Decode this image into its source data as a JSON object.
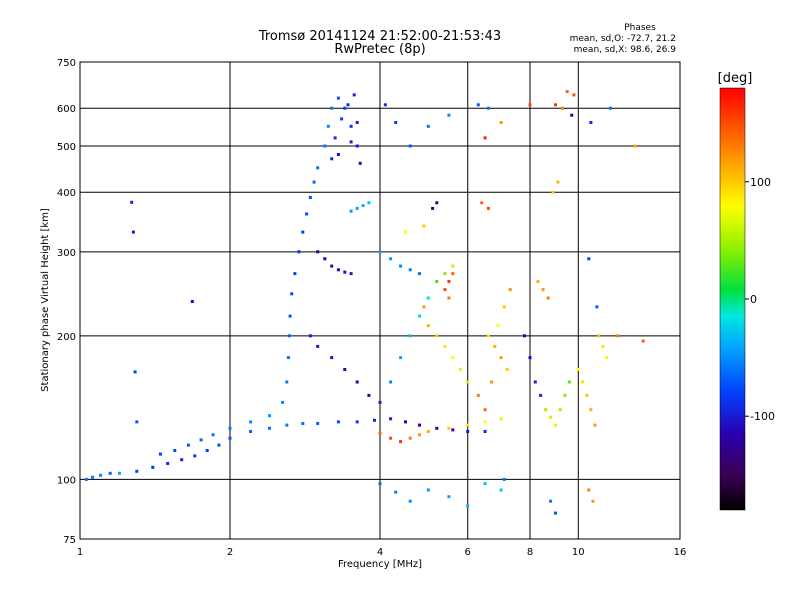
{
  "chart_data": {
    "type": "scatter",
    "title": "Tromsø 20141124 21:52:00-21:53:43",
    "subtitle": "RwPretec (8p)",
    "phases_box": {
      "heading": "Phases",
      "line_o": "mean, sd,O:  -72.7, 21.2",
      "line_x": "mean, sd,X:   98.6, 26.9"
    },
    "xlabel": "Frequency [MHz]",
    "ylabel": "Stationary phase Virtual Height [km]",
    "x_scale": "log",
    "y_scale": "log",
    "xlim": [
      1,
      16
    ],
    "ylim": [
      75,
      750
    ],
    "x_ticks": [
      1,
      2,
      4,
      6,
      8,
      10,
      16
    ],
    "x_tick_labels": [
      "1",
      "2",
      "4",
      "6",
      "8",
      "10",
      "16"
    ],
    "x_gridlines": [
      2,
      4,
      6,
      8,
      10
    ],
    "y_ticks": [
      75,
      100,
      200,
      300,
      400,
      500,
      600,
      750
    ],
    "y_tick_labels": [
      "75",
      "100",
      "200",
      "300",
      "400",
      "500",
      "600",
      "750"
    ],
    "y_gridlines": [
      100,
      200,
      300,
      400,
      500,
      600
    ],
    "grid": true,
    "colorbar": {
      "unit_label": "[deg]",
      "range": [
        -180,
        180
      ],
      "ticks": [
        100,
        0,
        -100
      ],
      "tick_labels": [
        "100",
        "0",
        "-100"
      ]
    },
    "series": [
      {
        "points": [
          [
            1.03,
            100,
            -60
          ],
          [
            1.06,
            101,
            -55
          ],
          [
            1.1,
            102,
            -50
          ],
          [
            1.15,
            103,
            -65
          ],
          [
            1.2,
            103,
            -40
          ],
          [
            1.27,
            381,
            -95
          ],
          [
            1.28,
            330,
            -100
          ],
          [
            1.29,
            168,
            -80
          ],
          [
            1.3,
            132,
            -70
          ],
          [
            1.68,
            236,
            -110
          ],
          [
            1.3,
            104,
            -80
          ],
          [
            1.4,
            106,
            -85
          ],
          [
            1.5,
            108,
            -90
          ],
          [
            1.6,
            110,
            -95
          ],
          [
            1.7,
            112,
            -85
          ],
          [
            1.8,
            115,
            -80
          ],
          [
            1.9,
            118,
            -75
          ],
          [
            2.0,
            122,
            -70
          ],
          [
            2.2,
            126,
            -65
          ],
          [
            2.4,
            128,
            -60
          ],
          [
            2.6,
            130,
            -55
          ],
          [
            2.8,
            131,
            -60
          ],
          [
            3.0,
            131,
            -65
          ],
          [
            3.3,
            132,
            -75
          ],
          [
            3.6,
            132,
            -85
          ],
          [
            3.9,
            133,
            -95
          ],
          [
            4.2,
            134,
            -100
          ],
          [
            4.5,
            132,
            -110
          ],
          [
            4.8,
            130,
            -115
          ],
          [
            5.2,
            128,
            -120
          ],
          [
            5.6,
            127,
            -110
          ],
          [
            6.0,
            126,
            -100
          ],
          [
            6.5,
            126,
            -90
          ],
          [
            1.45,
            113,
            -80
          ],
          [
            1.55,
            115,
            -75
          ],
          [
            1.65,
            118,
            -70
          ],
          [
            1.75,
            121,
            -65
          ],
          [
            1.85,
            124,
            -60
          ],
          [
            2.0,
            128,
            -55
          ],
          [
            2.2,
            132,
            -50
          ],
          [
            2.4,
            136,
            -45
          ],
          [
            2.55,
            145,
            -50
          ],
          [
            2.6,
            160,
            -55
          ],
          [
            2.62,
            180,
            -60
          ],
          [
            2.63,
            200,
            -65
          ],
          [
            2.64,
            220,
            -70
          ],
          [
            2.66,
            245,
            -75
          ],
          [
            2.7,
            270,
            -80
          ],
          [
            2.75,
            300,
            -85
          ],
          [
            2.8,
            330,
            -80
          ],
          [
            2.85,
            360,
            -75
          ],
          [
            2.9,
            390,
            -70
          ],
          [
            2.95,
            420,
            -65
          ],
          [
            3.0,
            450,
            -60
          ],
          [
            3.1,
            500,
            -55
          ],
          [
            3.15,
            550,
            -50
          ],
          [
            3.2,
            600,
            -60
          ],
          [
            3.3,
            630,
            -70
          ],
          [
            3.4,
            600,
            -80
          ],
          [
            3.5,
            550,
            -90
          ],
          [
            3.6,
            500,
            -100
          ],
          [
            3.65,
            460,
            -110
          ],
          [
            3.2,
            470,
            -95
          ],
          [
            3.25,
            520,
            -90
          ],
          [
            3.35,
            570,
            -85
          ],
          [
            3.45,
            610,
            -90
          ],
          [
            3.55,
            640,
            -95
          ],
          [
            3.3,
            480,
            -105
          ],
          [
            3.5,
            510,
            -100
          ],
          [
            3.6,
            560,
            -95
          ],
          [
            3.0,
            300,
            -115
          ],
          [
            3.1,
            290,
            -120
          ],
          [
            3.2,
            280,
            -125
          ],
          [
            3.3,
            275,
            -120
          ],
          [
            3.4,
            272,
            -110
          ],
          [
            3.5,
            270,
            -100
          ],
          [
            3.6,
            370,
            -40
          ],
          [
            3.7,
            375,
            -35
          ],
          [
            3.8,
            380,
            -30
          ],
          [
            3.5,
            365,
            -45
          ],
          [
            2.9,
            200,
            -100
          ],
          [
            3.0,
            190,
            -105
          ],
          [
            3.2,
            180,
            -110
          ],
          [
            3.4,
            170,
            -115
          ],
          [
            3.6,
            160,
            -120
          ],
          [
            3.8,
            150,
            -110
          ],
          [
            4.0,
            145,
            -100
          ],
          [
            4.2,
            160,
            -50
          ],
          [
            4.4,
            180,
            -40
          ],
          [
            4.6,
            200,
            -30
          ],
          [
            4.8,
            220,
            -20
          ],
          [
            5.0,
            240,
            -10
          ],
          [
            5.2,
            260,
            20
          ],
          [
            5.4,
            270,
            40
          ],
          [
            5.6,
            280,
            60
          ],
          [
            4.0,
            300,
            -40
          ],
          [
            4.2,
            290,
            -45
          ],
          [
            4.4,
            280,
            -50
          ],
          [
            4.6,
            275,
            -55
          ],
          [
            4.8,
            270,
            -60
          ],
          [
            5.4,
            250,
            150
          ],
          [
            5.5,
            260,
            160
          ],
          [
            5.6,
            270,
            140
          ],
          [
            5.5,
            240,
            130
          ],
          [
            4.5,
            330,
            80
          ],
          [
            4.9,
            340,
            100
          ],
          [
            5.1,
            370,
            -130
          ],
          [
            5.2,
            380,
            -140
          ],
          [
            4.9,
            230,
            120
          ],
          [
            5.0,
            210,
            110
          ],
          [
            5.2,
            200,
            100
          ],
          [
            5.4,
            190,
            90
          ],
          [
            5.6,
            180,
            80
          ],
          [
            5.8,
            170,
            70
          ],
          [
            6.0,
            160,
            60
          ],
          [
            4.0,
            125,
            140
          ],
          [
            4.2,
            122,
            150
          ],
          [
            4.4,
            120,
            160
          ],
          [
            4.6,
            122,
            130
          ],
          [
            4.8,
            124,
            120
          ],
          [
            5.0,
            126,
            110
          ],
          [
            5.5,
            128,
            100
          ],
          [
            6.0,
            130,
            90
          ],
          [
            6.5,
            132,
            80
          ],
          [
            7.0,
            134,
            70
          ],
          [
            6.6,
            200,
            90
          ],
          [
            6.8,
            190,
            110
          ],
          [
            7.0,
            180,
            120
          ],
          [
            7.2,
            170,
            100
          ],
          [
            6.3,
            150,
            130
          ],
          [
            6.5,
            140,
            140
          ],
          [
            6.7,
            160,
            120
          ],
          [
            6.9,
            210,
            80
          ],
          [
            7.1,
            230,
            100
          ],
          [
            7.3,
            250,
            120
          ],
          [
            6.4,
            380,
            140
          ],
          [
            6.6,
            370,
            150
          ],
          [
            6.5,
            520,
            170
          ],
          [
            6.6,
            600,
            -60
          ],
          [
            7.1,
            100,
            -60
          ],
          [
            7.8,
            200,
            -120
          ],
          [
            8.0,
            180,
            -110
          ],
          [
            8.2,
            160,
            -100
          ],
          [
            8.4,
            150,
            -90
          ],
          [
            8.6,
            140,
            50
          ],
          [
            8.8,
            135,
            60
          ],
          [
            9.0,
            130,
            70
          ],
          [
            9.2,
            140,
            50
          ],
          [
            9.4,
            150,
            40
          ],
          [
            9.6,
            160,
            30
          ],
          [
            8.5,
            250,
            120
          ],
          [
            8.7,
            240,
            130
          ],
          [
            8.3,
            260,
            110
          ],
          [
            8.9,
            400,
            100
          ],
          [
            9.1,
            420,
            110
          ],
          [
            9.3,
            600,
            130
          ],
          [
            9.5,
            650,
            140
          ],
          [
            9.7,
            580,
            -120
          ],
          [
            8.8,
            90,
            -60
          ],
          [
            9.0,
            85,
            -70
          ],
          [
            10.0,
            170,
            80
          ],
          [
            10.2,
            160,
            90
          ],
          [
            10.4,
            150,
            100
          ],
          [
            10.6,
            140,
            110
          ],
          [
            10.8,
            130,
            120
          ],
          [
            11.0,
            200,
            100
          ],
          [
            11.2,
            190,
            90
          ],
          [
            11.4,
            180,
            80
          ],
          [
            10.5,
            95,
            130
          ],
          [
            10.7,
            90,
            120
          ],
          [
            10.6,
            560,
            -90
          ],
          [
            10.5,
            290,
            -80
          ],
          [
            10.9,
            230,
            -70
          ],
          [
            11.6,
            600,
            -60
          ],
          [
            12.0,
            200,
            130
          ],
          [
            13.0,
            500,
            110
          ],
          [
            13.5,
            195,
            140
          ],
          [
            4.1,
            610,
            -90
          ],
          [
            4.3,
            560,
            -80
          ],
          [
            4.6,
            500,
            -70
          ],
          [
            5.0,
            550,
            -60
          ],
          [
            5.5,
            580,
            -50
          ],
          [
            6.3,
            610,
            -70
          ],
          [
            7.0,
            560,
            120
          ],
          [
            8.0,
            610,
            150
          ],
          [
            9.0,
            610,
            160
          ],
          [
            9.8,
            640,
            150
          ],
          [
            4.0,
            98,
            -60
          ],
          [
            4.3,
            94,
            -55
          ],
          [
            4.6,
            90,
            -50
          ],
          [
            5.0,
            95,
            -45
          ],
          [
            5.5,
            92,
            -40
          ],
          [
            6.0,
            88,
            -35
          ],
          [
            6.5,
            98,
            -30
          ],
          [
            7.0,
            95,
            -25
          ]
        ]
      }
    ]
  }
}
